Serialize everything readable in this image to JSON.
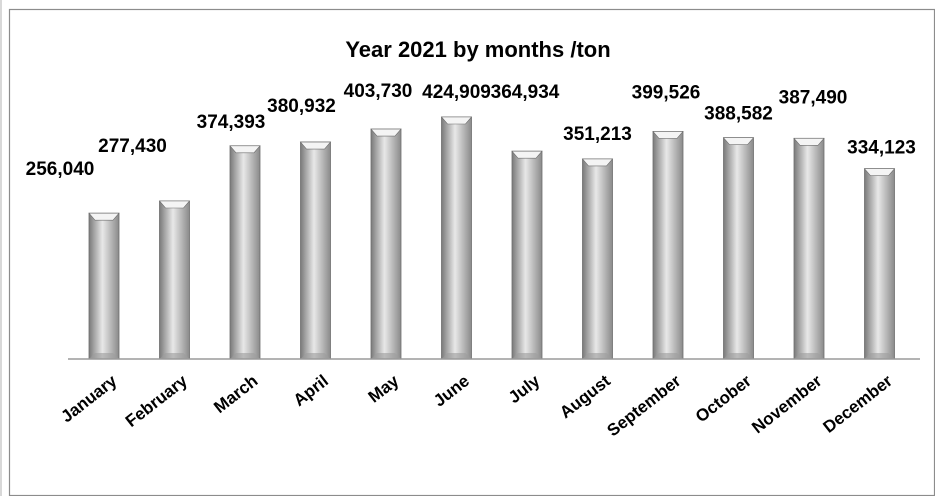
{
  "chart_data": {
    "type": "bar",
    "title": "Year 2021 by months /ton",
    "categories": [
      "January",
      "February",
      "March",
      "April",
      "May",
      "June",
      "July",
      "August",
      "September",
      "October",
      "November",
      "December"
    ],
    "values": [
      256040,
      277430,
      374393,
      380932,
      403730,
      424909,
      364934,
      351213,
      399526,
      388582,
      387490,
      334123
    ],
    "value_labels": [
      "256,040",
      "277,430",
      "374,393",
      "380,932",
      "403,730",
      "424,909",
      "364,934",
      "351,213",
      "399,526",
      "388,582",
      "387,490",
      "334,123"
    ],
    "xlabel": "",
    "ylabel": "",
    "ylim": [
      0,
      450000
    ],
    "grid": false,
    "legend": "none",
    "colors": {
      "bar_light": "#e8e8e8",
      "bar_mid": "#b4b4b4",
      "bar_dark": "#7a7a7a",
      "bar_outline": "#6e6e6e",
      "axis": "#9a9a9a",
      "frame": "#8c8c8c"
    }
  }
}
